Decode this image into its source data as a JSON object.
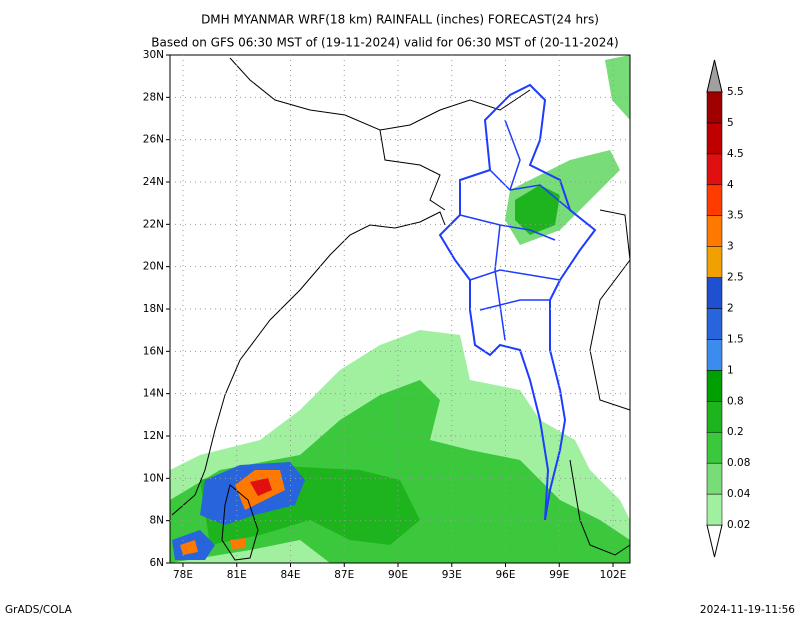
{
  "header": {
    "title": "DMH MYANMAR WRF(18 km) RAINFALL (inches) FORECAST(24 hrs)",
    "subtitle": "Based on GFS 06:30 MST of (19-11-2024) valid for 06:30 MST of (20-11-2024)"
  },
  "map": {
    "lat_labels": [
      "6N",
      "8N",
      "10N",
      "12N",
      "14N",
      "16N",
      "18N",
      "20N",
      "22N",
      "24N",
      "26N",
      "28N",
      "30N"
    ],
    "lon_labels": [
      "78E",
      "81E",
      "84E",
      "87E",
      "90E",
      "93E",
      "96E",
      "99E",
      "102E"
    ]
  },
  "colorbar": {
    "labels": [
      "0.02",
      "0.04",
      "0.08",
      "0.2",
      "0.8",
      "1",
      "1.5",
      "2",
      "2.5",
      "3",
      "3.5",
      "4",
      "4.5",
      "5",
      "5.5"
    ],
    "colors": [
      "#a0f0a0",
      "#78dc78",
      "#3cc83c",
      "#1eb41e",
      "#00a000",
      "#3c8cf0",
      "#2864dc",
      "#1e50d0",
      "#f0a000",
      "#ff7800",
      "#ff3c00",
      "#e01010",
      "#c00000",
      "#a00000"
    ]
  },
  "footer": {
    "left": "GrADS/COLA",
    "right": "2024-11-19-11:56"
  }
}
